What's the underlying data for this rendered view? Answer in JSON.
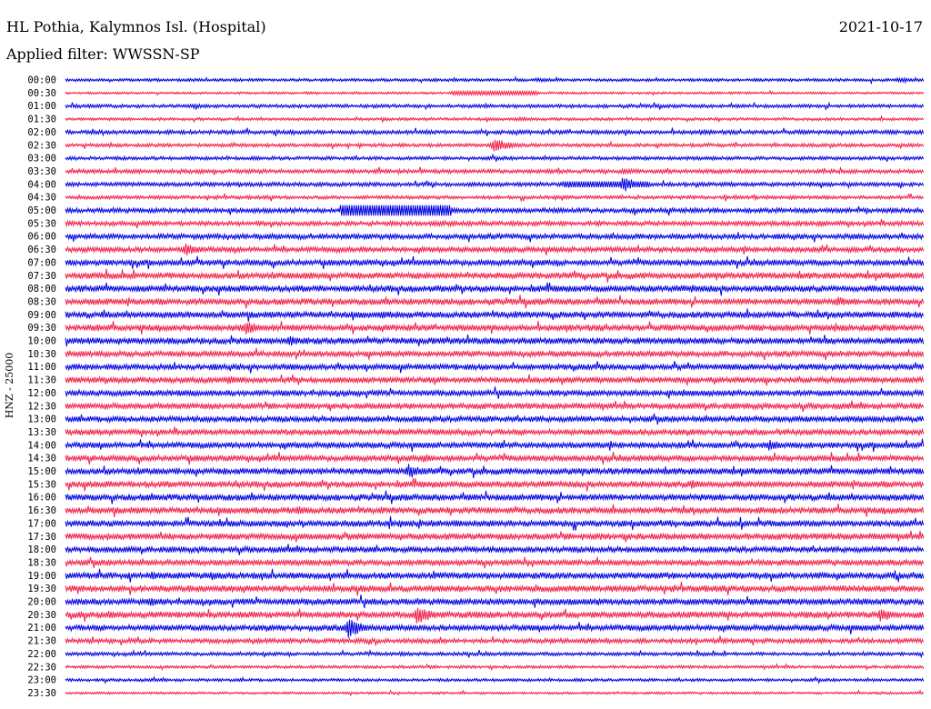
{
  "header": {
    "station": "HL Pothia, Kalymnos Isl. (Hospital)",
    "date": "2021-10-17",
    "filter_label": "Applied filter: WWSSN-SP"
  },
  "axis": {
    "channel_label": "HNZ - 25000"
  },
  "colors": {
    "trace_a": "#0000e0",
    "trace_b": "#f0204a"
  },
  "chart_data": {
    "type": "line",
    "title": "HL Pothia, Kalymnos Isl. (Hospital)",
    "subtitle": "Applied filter: WWSSN-SP",
    "ylabel": "HNZ - 25000",
    "row_labels": [
      "00:00",
      "00:30",
      "01:00",
      "01:30",
      "02:00",
      "02:30",
      "03:00",
      "03:30",
      "04:00",
      "04:30",
      "05:00",
      "05:30",
      "06:00",
      "06:30",
      "07:00",
      "07:30",
      "08:00",
      "08:30",
      "09:00",
      "09:30",
      "10:00",
      "10:30",
      "11:00",
      "11:30",
      "12:00",
      "12:30",
      "13:00",
      "13:30",
      "14:00",
      "14:30",
      "15:00",
      "15:30",
      "16:00",
      "16:30",
      "17:00",
      "17:30",
      "18:00",
      "18:30",
      "19:00",
      "19:30",
      "20:00",
      "20:30",
      "21:00",
      "21:30",
      "22:00",
      "22:30",
      "23:00",
      "23:30"
    ],
    "row_colors": [
      "blue",
      "red"
    ],
    "x_range_minutes": [
      0,
      30
    ],
    "rows": [
      {
        "noise": 0.25,
        "events": [
          {
            "x": 0.55,
            "amp": 0.4
          },
          {
            "x": 0.97,
            "amp": 0.5
          }
        ]
      },
      {
        "noise": 0.2,
        "events": [
          {
            "x": 0.45,
            "amp": 0.3,
            "width": 0.1,
            "flat": true
          }
        ]
      },
      {
        "noise": 0.3,
        "events": [
          {
            "x": 0.15,
            "amp": 0.4
          }
        ]
      },
      {
        "noise": 0.25,
        "events": [
          {
            "x": 0.53,
            "amp": 0.4
          }
        ]
      },
      {
        "noise": 0.35,
        "events": [
          {
            "x": 0.75,
            "amp": 0.4
          }
        ]
      },
      {
        "noise": 0.3,
        "events": [
          {
            "x": 0.5,
            "amp": 1.3
          }
        ]
      },
      {
        "noise": 0.3,
        "events": []
      },
      {
        "noise": 0.35,
        "events": [
          {
            "x": 0.65,
            "amp": 0.5
          }
        ]
      },
      {
        "noise": 0.35,
        "events": [
          {
            "x": 0.65,
            "amp": 1.4
          },
          {
            "x": 0.58,
            "amp": 0.5,
            "width": 0.1,
            "flat": true
          }
        ]
      },
      {
        "noise": 0.3,
        "events": []
      },
      {
        "noise": 0.4,
        "events": [
          {
            "x": 0.32,
            "amp": 0.9,
            "width": 0.13,
            "flat": true
          },
          {
            "x": 0.45,
            "amp": 0.6
          }
        ]
      },
      {
        "noise": 0.4,
        "events": [
          {
            "x": 0.88,
            "amp": 0.6
          }
        ]
      },
      {
        "noise": 0.45,
        "events": []
      },
      {
        "noise": 0.45,
        "events": [
          {
            "x": 0.14,
            "amp": 1.2
          }
        ]
      },
      {
        "noise": 0.5,
        "events": [
          {
            "x": 0.55,
            "amp": 0.6
          }
        ]
      },
      {
        "noise": 0.55,
        "events": [
          {
            "x": 0.28,
            "amp": 0.8
          }
        ]
      },
      {
        "noise": 0.55,
        "events": [
          {
            "x": 0.73,
            "amp": 0.7
          }
        ]
      },
      {
        "noise": 0.55,
        "events": [
          {
            "x": 0.9,
            "amp": 0.9
          }
        ]
      },
      {
        "noise": 0.55,
        "events": [
          {
            "x": 0.37,
            "amp": 0.7
          }
        ]
      },
      {
        "noise": 0.55,
        "events": [
          {
            "x": 0.21,
            "amp": 1.3
          }
        ]
      },
      {
        "noise": 0.55,
        "events": [
          {
            "x": 0.26,
            "amp": 1.0
          },
          {
            "x": 0.98,
            "amp": 0.7
          }
        ]
      },
      {
        "noise": 0.5,
        "events": []
      },
      {
        "noise": 0.5,
        "events": []
      },
      {
        "noise": 0.5,
        "events": [
          {
            "x": 0.19,
            "amp": 0.8
          }
        ]
      },
      {
        "noise": 0.5,
        "events": [
          {
            "x": 0.72,
            "amp": 0.7
          }
        ]
      },
      {
        "noise": 0.5,
        "events": []
      },
      {
        "noise": 0.5,
        "events": []
      },
      {
        "noise": 0.5,
        "events": [
          {
            "x": 0.43,
            "amp": 0.6
          }
        ]
      },
      {
        "noise": 0.5,
        "events": [
          {
            "x": 0.82,
            "amp": 1.0
          }
        ]
      },
      {
        "noise": 0.5,
        "events": [
          {
            "x": 0.42,
            "amp": 0.7
          }
        ]
      },
      {
        "noise": 0.55,
        "events": [
          {
            "x": 0.4,
            "amp": 1.3
          }
        ]
      },
      {
        "noise": 0.55,
        "events": [
          {
            "x": 0.73,
            "amp": 0.9
          }
        ]
      },
      {
        "noise": 0.55,
        "events": [
          {
            "x": 0.1,
            "amp": 0.8
          }
        ]
      },
      {
        "noise": 0.55,
        "events": [
          {
            "x": 0.27,
            "amp": 0.9
          }
        ]
      },
      {
        "noise": 0.55,
        "events": []
      },
      {
        "noise": 0.55,
        "events": []
      },
      {
        "noise": 0.5,
        "events": []
      },
      {
        "noise": 0.5,
        "events": []
      },
      {
        "noise": 0.55,
        "events": [
          {
            "x": 0.1,
            "amp": 0.8
          },
          {
            "x": 0.17,
            "amp": 0.8
          }
        ]
      },
      {
        "noise": 0.55,
        "events": []
      },
      {
        "noise": 0.55,
        "events": [
          {
            "x": 0.1,
            "amp": 0.9
          }
        ]
      },
      {
        "noise": 0.55,
        "events": [
          {
            "x": 0.05,
            "amp": 0.8
          },
          {
            "x": 0.41,
            "amp": 1.8
          },
          {
            "x": 0.95,
            "amp": 1.3
          }
        ]
      },
      {
        "noise": 0.5,
        "events": [
          {
            "x": 0.33,
            "amp": 1.8
          }
        ]
      },
      {
        "noise": 0.4,
        "events": []
      },
      {
        "noise": 0.3,
        "events": [
          {
            "x": 0.39,
            "amp": 0.4
          }
        ]
      },
      {
        "noise": 0.25,
        "events": []
      },
      {
        "noise": 0.25,
        "events": []
      },
      {
        "noise": 0.2,
        "events": []
      }
    ]
  }
}
